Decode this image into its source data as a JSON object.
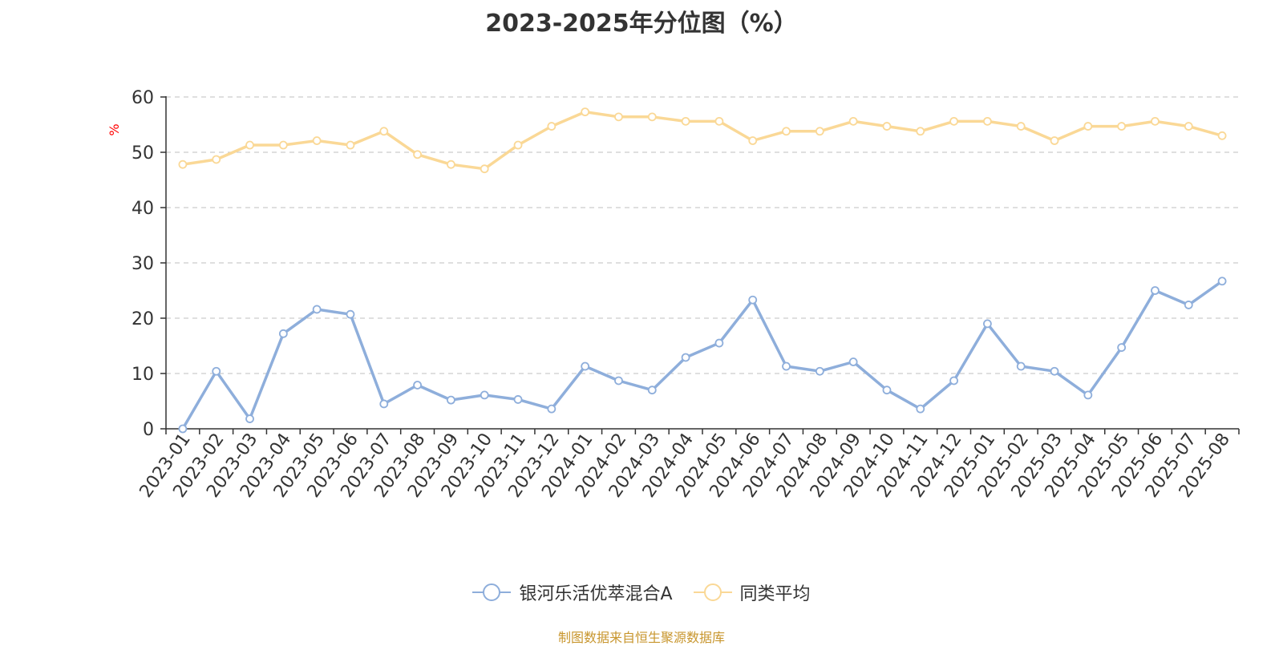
{
  "title": "2023-2025年分位图（%）",
  "source_note": "制图数据来自恒生聚源数据库",
  "chart_data": {
    "type": "line",
    "title": "2023-2025年分位图（%）",
    "ylabel": "%",
    "xlabel": "",
    "ylim": [
      0,
      60
    ],
    "yticks": [
      0,
      10,
      20,
      30,
      40,
      50,
      60
    ],
    "grid": true,
    "legend_position": "bottom-center",
    "categories": [
      "2023-01",
      "2023-02",
      "2023-03",
      "2023-04",
      "2023-05",
      "2023-06",
      "2023-07",
      "2023-08",
      "2023-09",
      "2023-10",
      "2023-11",
      "2023-12",
      "2024-01",
      "2024-02",
      "2024-03",
      "2024-04",
      "2024-05",
      "2024-06",
      "2024-07",
      "2024-08",
      "2024-09",
      "2024-10",
      "2024-11",
      "2024-12",
      "2025-01",
      "2025-02",
      "2025-03",
      "2025-04",
      "2025-05",
      "2025-06",
      "2025-07",
      "2025-08"
    ],
    "series": [
      {
        "name": "银河乐活优萃混合A",
        "color": "#8eaedb",
        "values": [
          0,
          10.4,
          1.8,
          17.2,
          21.6,
          20.7,
          4.5,
          7.9,
          5.2,
          6.1,
          5.3,
          3.6,
          11.3,
          8.7,
          7.0,
          12.9,
          15.5,
          23.3,
          11.3,
          10.4,
          12.1,
          7.0,
          3.6,
          8.7,
          19.0,
          11.3,
          10.4,
          6.1,
          14.7,
          25.0,
          22.4,
          26.7
        ]
      },
      {
        "name": "同类平均",
        "color": "#fad896",
        "values": [
          47.8,
          48.7,
          51.3,
          51.3,
          52.1,
          51.3,
          53.8,
          49.6,
          47.8,
          47.0,
          51.3,
          54.7,
          57.3,
          56.4,
          56.4,
          55.6,
          55.6,
          52.1,
          53.8,
          53.8,
          55.6,
          54.7,
          53.8,
          55.6,
          55.6,
          54.7,
          52.1,
          54.7,
          54.7,
          55.6,
          54.7,
          53.0
        ]
      }
    ]
  }
}
